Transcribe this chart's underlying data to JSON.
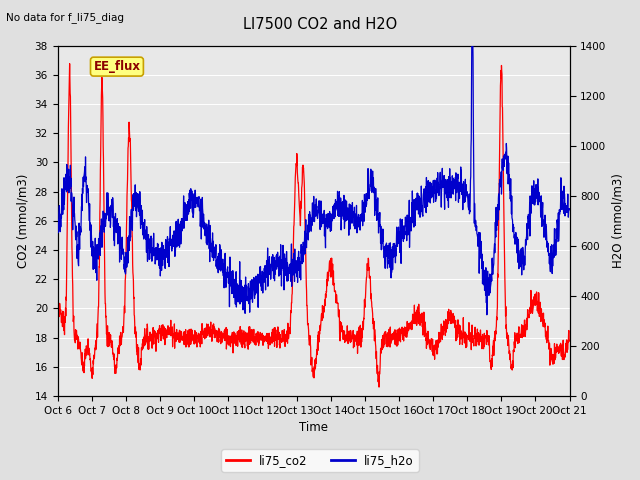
{
  "title": "LI7500 CO2 and H2O",
  "top_left_text": "No data for f_li75_diag",
  "xlabel": "Time",
  "ylabel_left": "CO2 (mmol/m3)",
  "ylabel_right": "H2O (mmol/m3)",
  "ylim_left": [
    14,
    38
  ],
  "ylim_right": [
    0,
    1400
  ],
  "yticks_left": [
    14,
    16,
    18,
    20,
    22,
    24,
    26,
    28,
    30,
    32,
    34,
    36,
    38
  ],
  "yticks_right": [
    0,
    200,
    400,
    600,
    800,
    1000,
    1200,
    1400
  ],
  "xtick_labels": [
    "Oct 6",
    "Oct 7",
    "Oct 8",
    "Oct 9",
    "Oct 10",
    "Oct 11",
    "Oct 12",
    "Oct 13",
    "Oct 14",
    "Oct 15",
    "Oct 16",
    "Oct 17",
    "Oct 18",
    "Oct 19",
    "Oct 20",
    "Oct 21"
  ],
  "bg_color": "#e0e0e0",
  "plot_bg_color": "#e8e8e8",
  "annotation_label": "EE_flux",
  "annotation_bg": "#ffff80",
  "annotation_border": "#c8a000",
  "co2_color": "#ff0000",
  "h2o_color": "#0000cc",
  "legend_co2": "li75_co2",
  "legend_h2o": "li75_h2o",
  "n_points": 2000
}
